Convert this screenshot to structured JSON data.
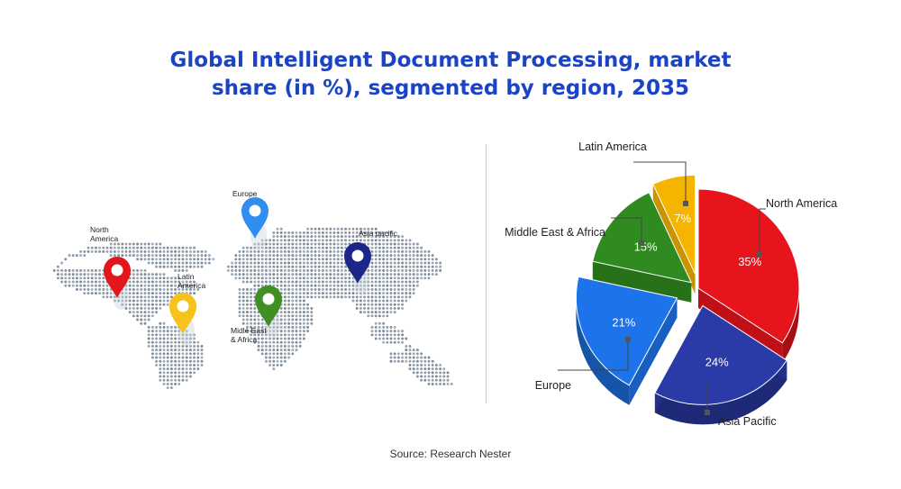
{
  "title": {
    "line1": "Global Intelligent Document Processing, market",
    "line2": "share (in %), segmented by region, 2035"
  },
  "source": "Source: Research Nester",
  "map": {
    "pins": [
      {
        "id": "north-america",
        "label_lines": [
          "North",
          "America"
        ],
        "color": "#e3161b"
      },
      {
        "id": "europe",
        "label_lines": [
          "Europe"
        ],
        "color": "#2f8ef0"
      },
      {
        "id": "latin-america",
        "label_lines": [
          "Latin",
          "America"
        ],
        "color": "#f6c21b"
      },
      {
        "id": "middle-east-africa",
        "label_lines": [
          "Midle East",
          "& Africa"
        ],
        "color": "#3f8f22"
      },
      {
        "id": "asia-pacific",
        "label_lines": [
          "Asia pacific"
        ],
        "color": "#1c2689"
      }
    ]
  },
  "chart_data": {
    "type": "pie",
    "title": "Global Intelligent Document Processing, market share (in %), segmented by region, 2035",
    "slices": [
      {
        "name": "North America",
        "value": 35,
        "label": "35%",
        "color": "#e8141b"
      },
      {
        "name": "Asia Pacific",
        "value": 24,
        "label": "24%",
        "color": "#2a3aa6"
      },
      {
        "name": "Europe",
        "value": 21,
        "label": "21%",
        "color": "#1d74ea"
      },
      {
        "name": "Middle East & Africa",
        "value": 15,
        "label": "15%",
        "color": "#2f8a1f"
      },
      {
        "name": "Latin America",
        "value": 7,
        "label": "7%",
        "color": "#f5b400"
      }
    ]
  }
}
